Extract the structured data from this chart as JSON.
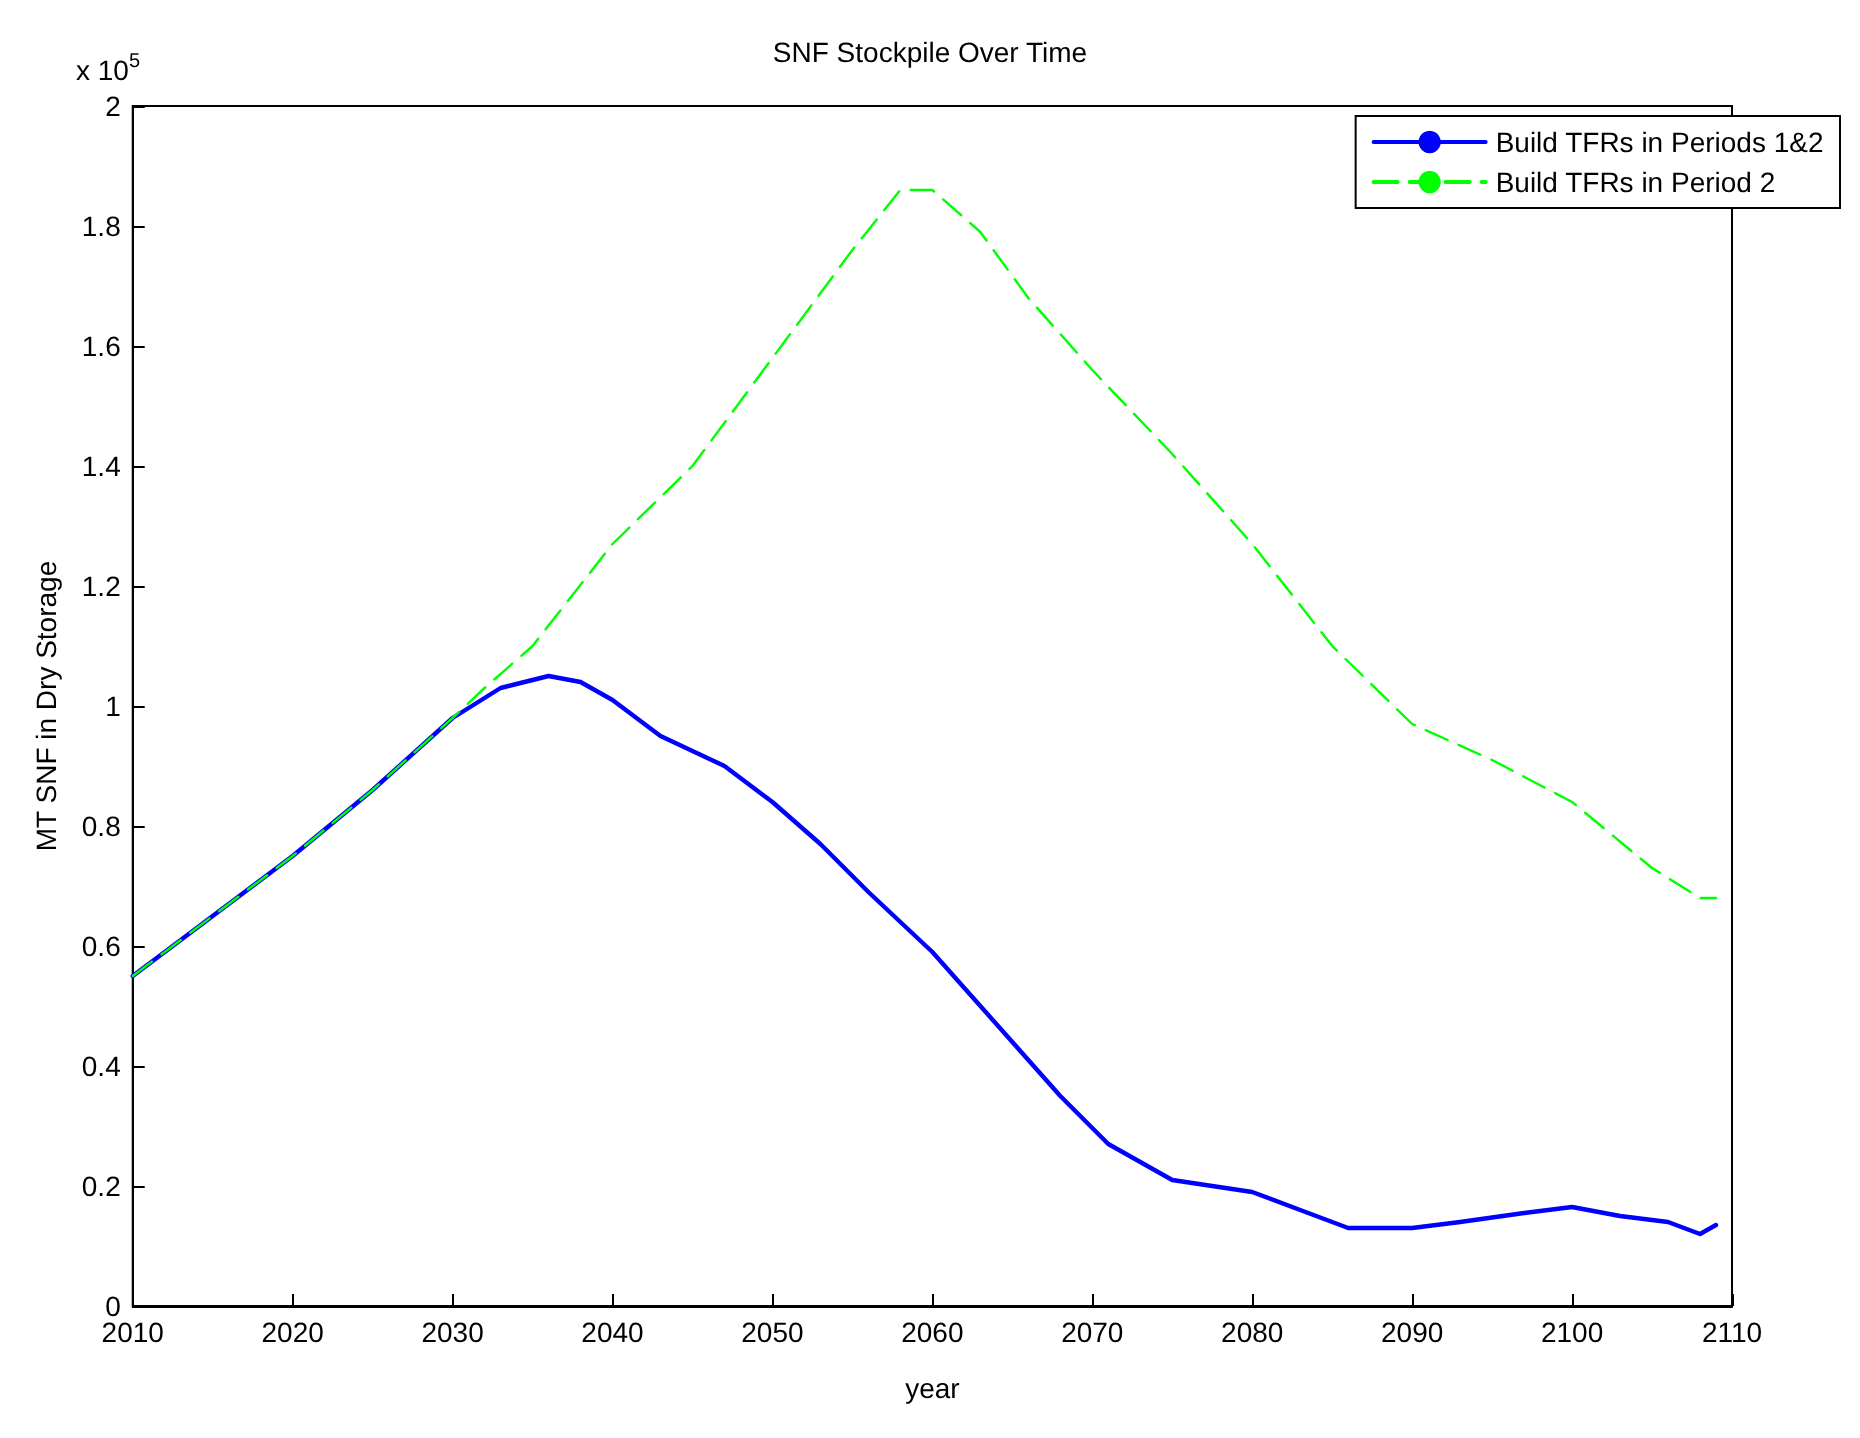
{
  "chart_data": {
    "type": "line",
    "title": "SNF Stockpile Over Time",
    "xlabel": "year",
    "ylabel": "MT SNF in Dry Storage",
    "annotations": [
      "x 10$^{5}$"
    ],
    "xlim": [
      2010,
      2110
    ],
    "xticks": [
      2010,
      2020,
      2030,
      2040,
      2050,
      2060,
      2070,
      2080,
      2090,
      2100,
      2110
    ],
    "ylim": [
      0,
      2
    ],
    "yticks": [
      0,
      0.2,
      0.4,
      0.6,
      0.8,
      1,
      1.2,
      1.4,
      1.6,
      1.8,
      2
    ],
    "grid": false,
    "legend": "top right",
    "marker": "none",
    "series": [
      {
        "name": "Build TFRs in Periods 1&2",
        "color": "#0000ff",
        "line_style": "solid",
        "x": [
          2010,
          2015,
          2020,
          2025,
          2030,
          2033,
          2036,
          2038,
          2040,
          2043,
          2047,
          2050,
          2053,
          2056,
          2060,
          2065,
          2068,
          2071,
          2075,
          2080,
          2083,
          2086,
          2090,
          2093,
          2097,
          2100,
          2103,
          2106,
          2108,
          2109
        ],
        "values": [
          0.55,
          0.65,
          0.75,
          0.86,
          0.98,
          1.03,
          1.05,
          1.04,
          1.01,
          0.95,
          0.9,
          0.84,
          0.77,
          0.69,
          0.59,
          0.44,
          0.35,
          0.27,
          0.21,
          0.19,
          0.16,
          0.13,
          0.13,
          0.14,
          0.155,
          0.165,
          0.15,
          0.14,
          0.12,
          0.135
        ]
      },
      {
        "name": "Build TFRs in Period 2",
        "color": "#00ff00",
        "line_style": "dashed",
        "x": [
          2010,
          2015,
          2020,
          2025,
          2030,
          2032,
          2035,
          2040,
          2045,
          2050,
          2055,
          2058,
          2060,
          2063,
          2066,
          2070,
          2075,
          2080,
          2085,
          2090,
          2095,
          2100,
          2105,
          2108,
          2109
        ],
        "values": [
          0.55,
          0.65,
          0.75,
          0.86,
          0.98,
          1.03,
          1.1,
          1.27,
          1.4,
          1.58,
          1.76,
          1.86,
          1.86,
          1.79,
          1.68,
          1.56,
          1.42,
          1.27,
          1.1,
          0.97,
          0.91,
          0.84,
          0.73,
          0.68,
          0.68
        ]
      }
    ]
  }
}
